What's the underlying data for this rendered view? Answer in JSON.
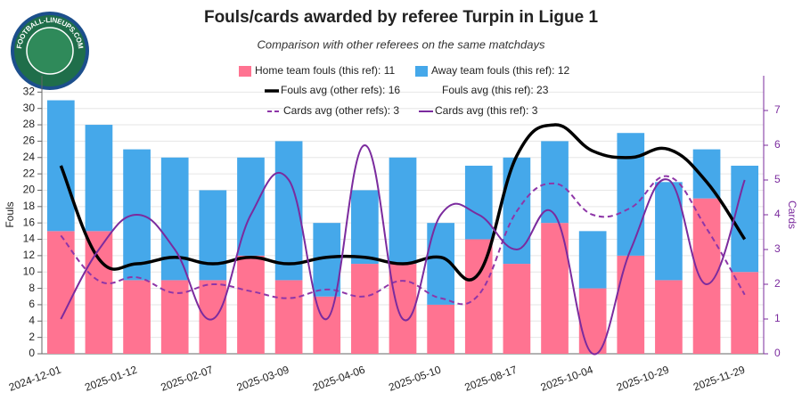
{
  "chart_data": {
    "type": "bar",
    "title": "Fouls/cards awarded by referee Turpin in Ligue 1",
    "subtitle": "Comparison with other referees on the same matchdays",
    "logo": "FOOTBALL-LINEUPS.COM",
    "y_label": "Fouls",
    "y2_label": "Cards",
    "y2_color": "#7b2b9e",
    "categories": [
      "2024-12-01",
      null,
      "2025-01-12",
      null,
      "2025-02-07",
      null,
      "2025-03-09",
      null,
      "2025-04-06",
      null,
      "2025-05-10",
      null,
      "2025-08-17",
      null,
      "2025-10-04",
      null,
      "2025-10-29",
      null,
      "2025-11-29"
    ],
    "ylim": [
      0,
      34
    ],
    "yticks": [
      0,
      2,
      4,
      6,
      8,
      10,
      12,
      14,
      16,
      18,
      20,
      22,
      24,
      26,
      28,
      30,
      32
    ],
    "y2lim": [
      0,
      8
    ],
    "y2ticks": [
      0,
      1,
      2,
      3,
      4,
      5,
      6,
      7
    ],
    "grid": true,
    "series": [
      {
        "name": "Home team fouls (this ref): 11",
        "color": "#ff7391",
        "type": "bar",
        "values": [
          15,
          15,
          9,
          9,
          9,
          12,
          9,
          7,
          11,
          11,
          6,
          14,
          11,
          16,
          8,
          12,
          9,
          19,
          10
        ]
      },
      {
        "name": "Away team fouls (this ref): 12",
        "color": "#45a8ea",
        "type": "bar",
        "values": [
          16,
          13,
          16,
          15,
          11,
          12,
          17,
          9,
          9,
          13,
          10,
          9,
          13,
          10,
          7,
          15,
          12,
          6,
          13
        ]
      },
      {
        "name": "Fouls avg (other refs): 16",
        "color": "#000000",
        "type": "line",
        "width": 3.5,
        "values": [
          23,
          11.6,
          11,
          11.8,
          11,
          11.8,
          11,
          11.8,
          11.8,
          11,
          11.8,
          9.8,
          24.2,
          28,
          24.8,
          24,
          25,
          21,
          14
        ]
      },
      {
        "name": "Fouls avg (this ref): 23",
        "color": "transparent",
        "type": "line",
        "width": 2,
        "values": [
          null,
          null,
          null,
          null,
          null,
          null,
          null,
          null,
          null,
          null,
          null,
          null,
          null,
          null,
          null,
          null,
          null,
          null,
          null
        ]
      },
      {
        "name": "Cards avg (other refs): 3",
        "color": "#8e36a8",
        "type": "line",
        "axis": "y2",
        "dash": true,
        "width": 2,
        "values": [
          3.4,
          2.1,
          2.2,
          1.75,
          2,
          1.8,
          1.6,
          1.85,
          1.65,
          2.1,
          1.6,
          1.7,
          4.1,
          4.9,
          4,
          4.2,
          5.1,
          3.6,
          1.7
        ]
      },
      {
        "name": "Cards avg (this ref): 3",
        "color": "#7b2b9e",
        "type": "line",
        "axis": "y2",
        "width": 2,
        "values": [
          1,
          3,
          4,
          3,
          1,
          4,
          5,
          1,
          6,
          1,
          4,
          4,
          3,
          4,
          0,
          3,
          5,
          2,
          5
        ]
      }
    ]
  }
}
